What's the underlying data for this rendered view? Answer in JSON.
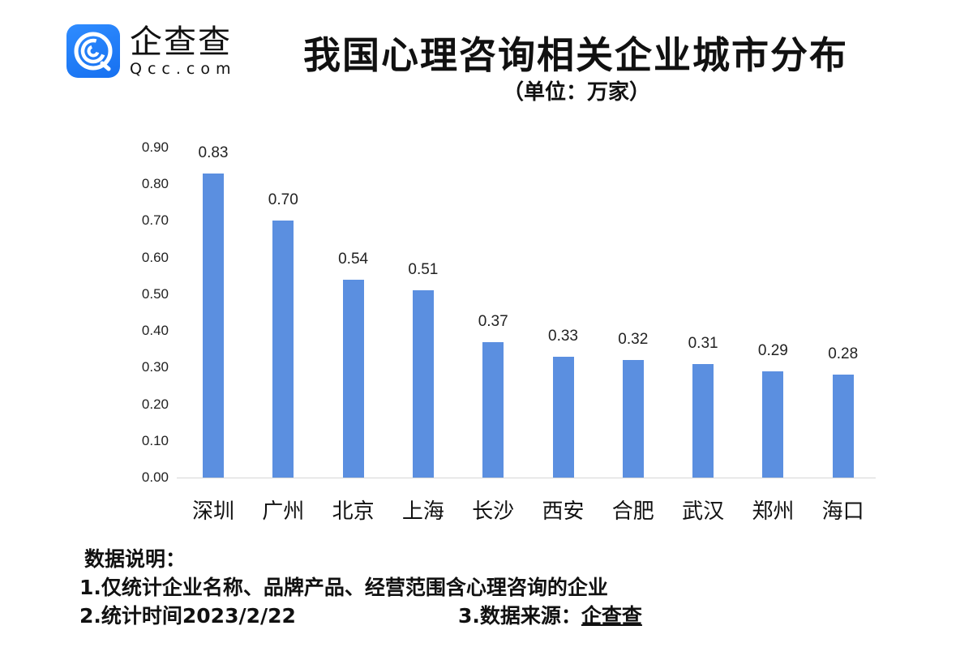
{
  "logo": {
    "icon": "qcc-q-logo-icon",
    "name_cn": "企查查",
    "name_en": "Qcc.com",
    "color": "#1f7cf5"
  },
  "header": {
    "title": "我国心理咨询相关企业城市分布",
    "unit": "（单位：万家）"
  },
  "chart_data": {
    "type": "bar",
    "title": "我国心理咨询相关企业城市分布",
    "subtitle": "（单位：万家）",
    "xlabel": "",
    "ylabel": "万家",
    "categories": [
      "深圳",
      "广州",
      "北京",
      "上海",
      "长沙",
      "西安",
      "合肥",
      "武汉",
      "郑州",
      "海口"
    ],
    "values": [
      0.83,
      0.7,
      0.54,
      0.51,
      0.37,
      0.33,
      0.32,
      0.31,
      0.29,
      0.28
    ],
    "value_labels": [
      "0.83",
      "0.70",
      "0.54",
      "0.51",
      "0.37",
      "0.33",
      "0.32",
      "0.31",
      "0.29",
      "0.28"
    ],
    "yticks": [
      "0.00",
      "0.10",
      "0.20",
      "0.30",
      "0.40",
      "0.50",
      "0.60",
      "0.70",
      "0.80",
      "0.90"
    ],
    "ylim": [
      0,
      0.9
    ],
    "grid": false,
    "legend": null,
    "bar_color": "#5b8fe0"
  },
  "notes": {
    "heading": "数据说明：",
    "line1": "1.仅统计企业名称、品牌产品、经营范围含心理咨询的企业",
    "line2": "2.统计时间2023/2/22",
    "source_prefix": "3.数据来源：",
    "source_name": "企查查"
  }
}
